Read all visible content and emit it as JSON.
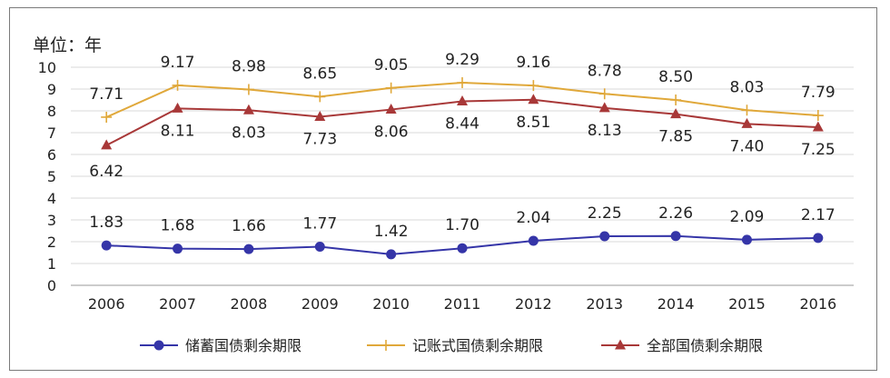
{
  "chart_data": {
    "type": "line",
    "unit_label": "单位：年",
    "categories": [
      "2006",
      "2007",
      "2008",
      "2009",
      "2010",
      "2011",
      "2012",
      "2013",
      "2014",
      "2015",
      "2016"
    ],
    "ylim": [
      0,
      10
    ],
    "yticks": [
      0,
      1,
      2,
      3,
      4,
      5,
      6,
      7,
      8,
      9,
      10
    ],
    "grid": true,
    "legend_position": "bottom",
    "series": [
      {
        "name": "储蓄国债剩余期限",
        "color": "#3535a8",
        "marker": "circle",
        "values": [
          1.83,
          1.68,
          1.66,
          1.77,
          1.42,
          1.7,
          2.04,
          2.25,
          2.26,
          2.09,
          2.17
        ],
        "labels": [
          "1.83",
          "1.68",
          "1.66",
          "1.77",
          "1.42",
          "1.70",
          "2.04",
          "2.25",
          "2.26",
          "2.09",
          "2.17"
        ]
      },
      {
        "name": "记账式国债剩余期限",
        "color": "#e0a83a",
        "marker": "plus",
        "values": [
          7.71,
          9.17,
          8.98,
          8.65,
          9.05,
          9.29,
          9.16,
          8.78,
          8.5,
          8.03,
          7.79
        ],
        "labels": [
          "7.71",
          "9.17",
          "8.98",
          "8.65",
          "9.05",
          "9.29",
          "9.16",
          "8.78",
          "8.50",
          "8.03",
          "7.79"
        ]
      },
      {
        "name": "全部国债剩余期限",
        "color": "#a83838",
        "marker": "triangle",
        "values": [
          6.42,
          8.11,
          8.03,
          7.73,
          8.06,
          8.44,
          8.51,
          8.13,
          7.85,
          7.4,
          7.25
        ],
        "labels": [
          "6.42",
          "8.11",
          "8.03",
          "7.73",
          "8.06",
          "8.44",
          "8.51",
          "8.13",
          "7.85",
          "7.40",
          "7.25"
        ]
      }
    ]
  }
}
